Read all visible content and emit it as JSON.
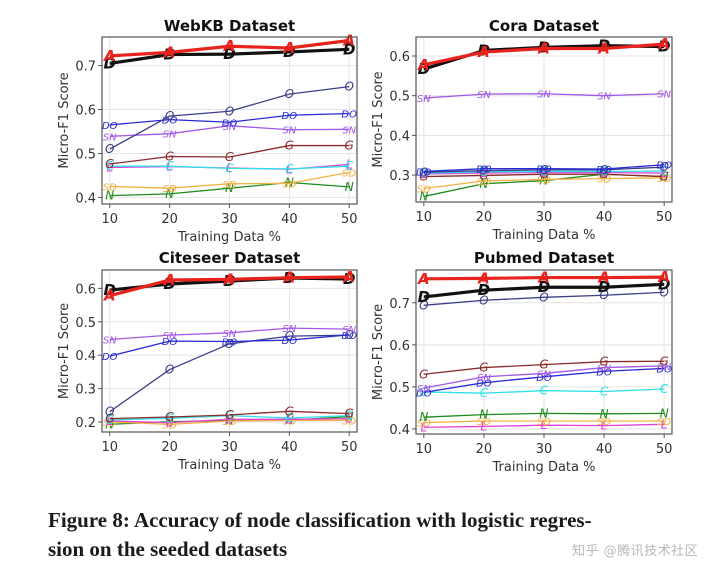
{
  "caption": {
    "line1": "Figure 8: Accuracy of node classification with logistic regres-",
    "line2": "sion on the seeded datasets"
  },
  "watermark": "知乎 @腾讯技术社区",
  "series_styles": {
    "A": {
      "color": "#e8231e",
      "marker": "A",
      "width": "thick"
    },
    "D": {
      "color": "#111111",
      "marker": "D",
      "width": "thick"
    },
    "O": {
      "color": "#3b3f86",
      "marker": "O",
      "width": "thin"
    },
    "DO": {
      "color": "#2a2ad6",
      "marker": "DO",
      "width": "thin"
    },
    "SN": {
      "color": "#a259e6",
      "marker": "SN",
      "width": "thin"
    },
    "G": {
      "color": "#8b2a2a",
      "marker": "G",
      "width": "thin"
    },
    "C": {
      "color": "#2fe0e6",
      "marker": "C",
      "width": "thin"
    },
    "L": {
      "color": "#e042d8",
      "marker": "L",
      "width": "thin"
    },
    "SD": {
      "color": "#f5b041",
      "marker": "SD",
      "width": "thin"
    },
    "N": {
      "color": "#1e8c1e",
      "marker": "N",
      "width": "thin"
    }
  },
  "chart_data": [
    {
      "type": "line",
      "title": "WebKB Dataset",
      "xlabel": "Training Data %",
      "ylabel": "Micro-F1 Score",
      "x": [
        10,
        20,
        30,
        40,
        50
      ],
      "xticks": [
        "10",
        "20",
        "30",
        "40",
        "50"
      ],
      "yticks": [
        "0.4",
        "0.5",
        "0.6",
        "0.7"
      ],
      "ytick_values": [
        0.4,
        0.5,
        0.6,
        0.7
      ],
      "ylim": [
        0.385,
        0.765
      ],
      "xlim": [
        8.7,
        51.3
      ],
      "grid": true,
      "series": [
        {
          "name": "N",
          "values": [
            0.404,
            0.408,
            0.421,
            0.434,
            0.424
          ]
        },
        {
          "name": "SD",
          "values": [
            0.425,
            0.421,
            0.431,
            0.432,
            0.457
          ]
        },
        {
          "name": "L",
          "values": [
            0.468,
            0.47,
            0.467,
            0.464,
            0.475
          ]
        },
        {
          "name": "C",
          "values": [
            0.471,
            0.471,
            0.466,
            0.465,
            0.471
          ]
        },
        {
          "name": "G",
          "values": [
            0.476,
            0.493,
            0.492,
            0.518,
            0.518
          ]
        },
        {
          "name": "SN",
          "values": [
            0.539,
            0.545,
            0.563,
            0.554,
            0.555
          ]
        },
        {
          "name": "DO",
          "values": [
            0.565,
            0.577,
            0.571,
            0.587,
            0.591
          ]
        },
        {
          "name": "O",
          "values": [
            0.51,
            0.585,
            0.596,
            0.635,
            0.652
          ]
        },
        {
          "name": "D",
          "values": [
            0.705,
            0.725,
            0.726,
            0.731,
            0.737
          ]
        },
        {
          "name": "A",
          "values": [
            0.722,
            0.73,
            0.744,
            0.74,
            0.757
          ]
        }
      ]
    },
    {
      "type": "line",
      "title": "Cora Dataset",
      "xlabel": "Training Data %",
      "ylabel": "Micro-F1 Score",
      "x": [
        10,
        20,
        30,
        40,
        50
      ],
      "xticks": [
        "10",
        "20",
        "30",
        "40",
        "50"
      ],
      "yticks": [
        "0.3",
        "0.4",
        "0.5",
        "0.6"
      ],
      "ytick_values": [
        0.3,
        0.4,
        0.5,
        0.6
      ],
      "ylim": [
        0.232,
        0.648
      ],
      "xlim": [
        8.7,
        51.3
      ],
      "grid": true,
      "series": [
        {
          "name": "N",
          "values": [
            0.246,
            0.278,
            0.286,
            0.302,
            0.296
          ]
        },
        {
          "name": "SD",
          "values": [
            0.266,
            0.285,
            0.289,
            0.291,
            0.293
          ]
        },
        {
          "name": "G",
          "values": [
            0.296,
            0.299,
            0.302,
            0.302,
            0.296
          ]
        },
        {
          "name": "L",
          "values": [
            0.303,
            0.305,
            0.306,
            0.306,
            0.305
          ]
        },
        {
          "name": "C",
          "values": [
            0.305,
            0.308,
            0.309,
            0.309,
            0.31
          ]
        },
        {
          "name": "O",
          "values": [
            0.307,
            0.311,
            0.313,
            0.313,
            0.32
          ]
        },
        {
          "name": "DO",
          "values": [
            0.309,
            0.316,
            0.316,
            0.315,
            0.326
          ]
        },
        {
          "name": "SN",
          "values": [
            0.494,
            0.504,
            0.505,
            0.5,
            0.505
          ]
        },
        {
          "name": "D",
          "values": [
            0.567,
            0.614,
            0.622,
            0.626,
            0.624
          ]
        },
        {
          "name": "A",
          "values": [
            0.578,
            0.61,
            0.619,
            0.619,
            0.63
          ]
        }
      ]
    },
    {
      "type": "line",
      "title": "Citeseer Dataset",
      "xlabel": "Training Data %",
      "ylabel": "Micro-F1 Score",
      "x": [
        10,
        20,
        30,
        40,
        50
      ],
      "xticks": [
        "10",
        "20",
        "30",
        "40",
        "50"
      ],
      "yticks": [
        "0.2",
        "0.3",
        "0.4",
        "0.5",
        "0.6"
      ],
      "ytick_values": [
        0.2,
        0.3,
        0.4,
        0.5,
        0.6
      ],
      "ylim": [
        0.17,
        0.655
      ],
      "xlim": [
        8.7,
        51.3
      ],
      "grid": true,
      "series": [
        {
          "name": "N",
          "values": [
            0.193,
            0.201,
            0.204,
            0.205,
            0.216
          ]
        },
        {
          "name": "SD",
          "values": [
            0.2,
            0.193,
            0.203,
            0.205,
            0.205
          ]
        },
        {
          "name": "L",
          "values": [
            0.203,
            0.198,
            0.208,
            0.208,
            0.21
          ]
        },
        {
          "name": "C",
          "values": [
            0.206,
            0.211,
            0.219,
            0.212,
            0.219
          ]
        },
        {
          "name": "G",
          "values": [
            0.21,
            0.215,
            0.221,
            0.232,
            0.225
          ]
        },
        {
          "name": "O",
          "values": [
            0.231,
            0.357,
            0.434,
            0.457,
            0.46
          ]
        },
        {
          "name": "DO",
          "values": [
            0.397,
            0.442,
            0.441,
            0.445,
            0.461
          ]
        },
        {
          "name": "SN",
          "values": [
            0.447,
            0.46,
            0.467,
            0.481,
            0.478
          ]
        },
        {
          "name": "D",
          "values": [
            0.595,
            0.613,
            0.622,
            0.631,
            0.628
          ]
        },
        {
          "name": "A",
          "values": [
            0.578,
            0.625,
            0.627,
            0.632,
            0.634
          ]
        }
      ]
    },
    {
      "type": "line",
      "title": "Pubmed Dataset",
      "xlabel": "Training Data %",
      "ylabel": "Micro-F1 Score",
      "x": [
        10,
        20,
        30,
        40,
        50
      ],
      "xticks": [
        "10",
        "20",
        "30",
        "40",
        "50"
      ],
      "yticks": [
        "0.4",
        "0.5",
        "0.6",
        "0.7"
      ],
      "ytick_values": [
        0.4,
        0.5,
        0.6,
        0.7
      ],
      "ylim": [
        0.388,
        0.778
      ],
      "xlim": [
        8.7,
        51.3
      ],
      "grid": true,
      "series": [
        {
          "name": "L",
          "values": [
            0.404,
            0.406,
            0.409,
            0.408,
            0.411
          ]
        },
        {
          "name": "SD",
          "values": [
            0.415,
            0.419,
            0.419,
            0.419,
            0.419
          ]
        },
        {
          "name": "N",
          "values": [
            0.428,
            0.434,
            0.437,
            0.436,
            0.437
          ]
        },
        {
          "name": "C",
          "values": [
            0.488,
            0.485,
            0.491,
            0.489,
            0.495
          ]
        },
        {
          "name": "DO",
          "values": [
            0.487,
            0.51,
            0.524,
            0.537,
            0.544
          ]
        },
        {
          "name": "SN",
          "values": [
            0.497,
            0.524,
            0.532,
            0.546,
            0.55
          ]
        },
        {
          "name": "G",
          "values": [
            0.53,
            0.546,
            0.553,
            0.56,
            0.561
          ]
        },
        {
          "name": "O",
          "values": [
            0.694,
            0.706,
            0.713,
            0.718,
            0.725
          ]
        },
        {
          "name": "D",
          "values": [
            0.714,
            0.73,
            0.737,
            0.737,
            0.744
          ]
        },
        {
          "name": "A",
          "values": [
            0.757,
            0.758,
            0.76,
            0.76,
            0.761
          ]
        }
      ]
    }
  ]
}
